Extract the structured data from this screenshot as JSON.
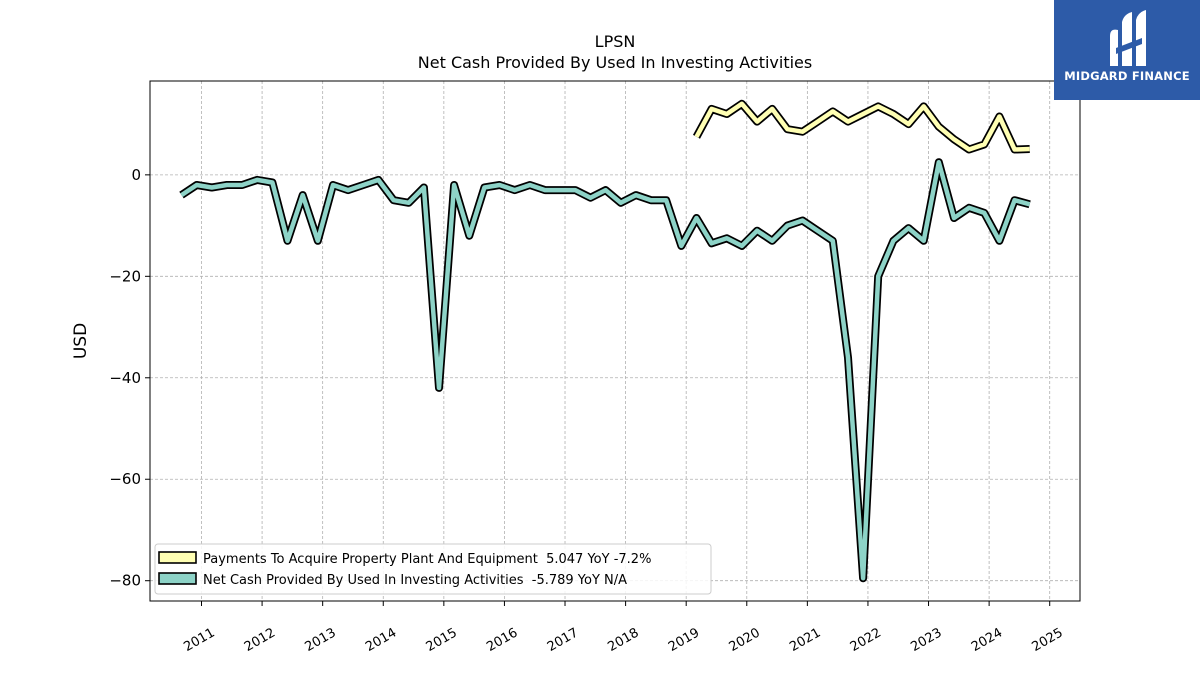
{
  "chart_data": {
    "type": "line",
    "title": "LPSN",
    "subtitle": "Net Cash Provided By Used In Investing Activities",
    "ylabel": "USD",
    "xlabel": "",
    "xlim": [
      2010.15,
      2025.5
    ],
    "ylim": [
      -84,
      18.5
    ],
    "yticks": [
      0,
      -20,
      -40,
      -60,
      -80
    ],
    "ytick_labels": [
      "0",
      "−20",
      "−40",
      "−60",
      "−80"
    ],
    "xticks": [
      2011,
      2012,
      2013,
      2014,
      2015,
      2016,
      2017,
      2018,
      2019,
      2020,
      2021,
      2022,
      2023,
      2024,
      2025
    ],
    "xtick_labels": [
      "2011",
      "2012",
      "2013",
      "2014",
      "2015",
      "2016",
      "2017",
      "2018",
      "2019",
      "2020",
      "2021",
      "2022",
      "2023",
      "2024",
      "2025"
    ],
    "grid": true,
    "legend_position": "lower-left",
    "series": [
      {
        "name": "Payments To Acquire Property Plant And Equipment  5.047 YoY -7.2%",
        "color": "#ffffb3",
        "x": [
          2019.17,
          2019.42,
          2019.67,
          2019.92,
          2020.17,
          2020.42,
          2020.67,
          2020.92,
          2021.17,
          2021.42,
          2021.67,
          2021.92,
          2022.17,
          2022.42,
          2022.67,
          2022.92,
          2023.17,
          2023.42,
          2023.67,
          2023.92,
          2024.17,
          2024.42,
          2024.67
        ],
        "y": [
          7.5,
          13.0,
          12.0,
          14.0,
          10.5,
          13.0,
          9.0,
          8.5,
          10.5,
          12.5,
          10.5,
          12.0,
          13.5,
          12.0,
          10.0,
          13.5,
          9.5,
          7.0,
          5.0,
          6.0,
          11.5,
          5.0,
          5.1
        ]
      },
      {
        "name": "Net Cash Provided By Used In Investing Activities  -5.789 YoY N/A",
        "color": "#8dd3c7",
        "x": [
          2010.67,
          2010.92,
          2011.17,
          2011.42,
          2011.67,
          2011.92,
          2012.17,
          2012.42,
          2012.67,
          2012.92,
          2013.17,
          2013.42,
          2013.67,
          2013.92,
          2014.17,
          2014.42,
          2014.67,
          2014.92,
          2015.17,
          2015.42,
          2015.67,
          2015.92,
          2016.17,
          2016.42,
          2016.67,
          2016.92,
          2017.17,
          2017.42,
          2017.67,
          2017.92,
          2018.17,
          2018.42,
          2018.67,
          2018.92,
          2019.17,
          2019.42,
          2019.67,
          2019.92,
          2020.17,
          2020.42,
          2020.67,
          2020.92,
          2021.17,
          2021.42,
          2021.67,
          2021.92,
          2022.17,
          2022.42,
          2022.67,
          2022.92,
          2023.17,
          2023.42,
          2023.67,
          2023.92,
          2024.17,
          2024.42,
          2024.67
        ],
        "y": [
          -4.0,
          -2.0,
          -2.5,
          -2.0,
          -2.0,
          -1.0,
          -1.5,
          -13.0,
          -4.0,
          -13.0,
          -2.0,
          -3.0,
          -2.0,
          -1.0,
          -5.0,
          -5.5,
          -2.5,
          -42.0,
          -2.0,
          -12.0,
          -2.5,
          -2.0,
          -3.0,
          -2.0,
          -3.0,
          -3.0,
          -3.0,
          -4.5,
          -3.0,
          -5.5,
          -4.0,
          -5.0,
          -5.0,
          -14.0,
          -8.5,
          -13.5,
          -12.5,
          -14.0,
          -11.0,
          -13.0,
          -10.0,
          -9.0,
          -11.0,
          -13.0,
          -36.0,
          -79.5,
          -20.0,
          -13.0,
          -10.5,
          -13.0,
          2.5,
          -8.5,
          -6.5,
          -7.5,
          -13.0,
          -5.0,
          -5.8
        ]
      }
    ]
  },
  "logo": {
    "name": "MIDGARD FINANCE",
    "color": "#2d5ba8"
  }
}
